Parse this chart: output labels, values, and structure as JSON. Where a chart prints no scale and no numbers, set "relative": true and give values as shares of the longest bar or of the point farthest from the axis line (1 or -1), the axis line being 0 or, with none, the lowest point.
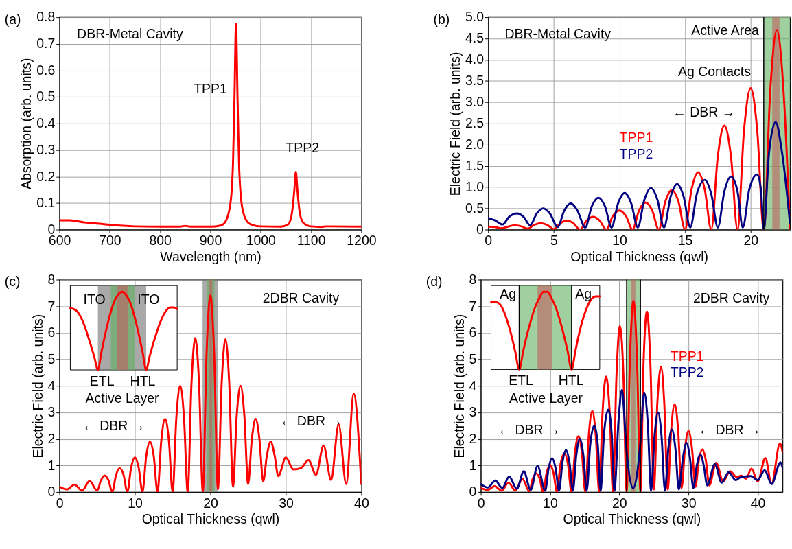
{
  "chart_data": [
    {
      "type": "line",
      "title": "(a)",
      "xlabel": "Wavelength (nm)",
      "ylabel": "Absorption (arb. units)",
      "xlim": [
        600,
        1200
      ],
      "ylim": [
        0,
        0.8
      ],
      "xticks": [
        600,
        700,
        800,
        900,
        1000,
        1100,
        1200
      ],
      "yticks": [
        0,
        0.1,
        0.2,
        0.3,
        0.4,
        0.5,
        0.6,
        0.7,
        0.8
      ],
      "grid": true,
      "x": [
        600,
        620,
        650,
        680,
        700,
        750,
        800,
        840,
        850,
        860,
        900,
        920,
        930,
        940,
        945,
        948,
        951,
        954,
        957,
        962,
        970,
        980,
        1000,
        1040,
        1055,
        1062,
        1067,
        1070,
        1073,
        1078,
        1085,
        1100,
        1120,
        1130,
        1200
      ],
      "series": [
        {
          "color": "#ff0000",
          "values": [
            0.035,
            0.035,
            0.027,
            0.022,
            0.018,
            0.012,
            0.011,
            0.011,
            0.014,
            0.011,
            0.011,
            0.015,
            0.03,
            0.1,
            0.25,
            0.5,
            0.775,
            0.5,
            0.25,
            0.1,
            0.04,
            0.02,
            0.012,
            0.011,
            0.02,
            0.06,
            0.15,
            0.218,
            0.15,
            0.06,
            0.025,
            0.012,
            0.01,
            0.012,
            0.011
          ]
        }
      ],
      "annotations": [
        "DBR-Metal Cavity",
        "TPP1",
        "TPP2"
      ]
    },
    {
      "type": "line",
      "title": "(b)",
      "xlabel": "Optical Thickness (qwl)",
      "ylabel": "Electric Field (arb. units)",
      "xlim": [
        0,
        23
      ],
      "ylim": [
        0,
        5
      ],
      "xticks": [
        0,
        5,
        10,
        15,
        20
      ],
      "yticks": [
        0,
        0.5,
        {
          "value": 1,
          "label": "1.0"
        },
        1.5,
        {
          "value": 2,
          "label": "2.0"
        },
        2.5,
        {
          "value": 3,
          "label": "3.0"
        },
        3.5,
        {
          "value": 4,
          "label": "4.0"
        },
        4.5,
        {
          "value": 5,
          "label": "5.0"
        }
      ],
      "grid": true,
      "series": [
        {
          "name": "TPP1",
          "color": "#ff0000",
          "x": [
            0,
            0.5,
            1,
            1.5,
            2,
            2.5,
            3,
            3.5,
            4,
            4.5,
            5,
            5.5,
            6,
            6.5,
            7,
            7.5,
            8,
            8.5,
            9,
            9.5,
            10,
            10.5,
            11,
            11.5,
            12,
            12.5,
            13,
            13.5,
            14,
            14.5,
            15,
            15.5,
            16,
            16.5,
            17,
            17.5,
            18,
            18.5,
            19,
            19.5,
            20,
            20.5,
            21,
            21.5,
            22,
            22.5,
            23
          ],
          "values": [
            0.07,
            0.06,
            0.03,
            0.07,
            0.1,
            0.08,
            0.02,
            0.11,
            0.15,
            0.11,
            0.01,
            0.15,
            0.21,
            0.15,
            0,
            0.21,
            0.3,
            0.21,
            0,
            0.32,
            0.45,
            0.32,
            0,
            0.45,
            0.64,
            0.45,
            0,
            0.66,
            0.93,
            0.66,
            0,
            0.95,
            1.35,
            0.95,
            0,
            1.73,
            2.45,
            1.73,
            0,
            2.35,
            3.33,
            2.35,
            0,
            3.3,
            4.7,
            3.3,
            0
          ]
        },
        {
          "name": "TPP2",
          "color": "#000080",
          "x": [
            0,
            0.5,
            1.1,
            1.6,
            2.2,
            2.7,
            3.2,
            3.7,
            4.2,
            4.7,
            5.3,
            5.8,
            6.3,
            6.8,
            7.4,
            7.9,
            8.4,
            8.9,
            9.4,
            9.9,
            10.4,
            10.9,
            11.4,
            11.9,
            12.4,
            12.9,
            13.4,
            13.9,
            14.4,
            14.9,
            15.4,
            15.9,
            16.5,
            17.0,
            17.5,
            18.0,
            18.5,
            19.0,
            19.4,
            19.9,
            20.5,
            20.8,
            21,
            21.4,
            21.9,
            22.4,
            23
          ],
          "values": [
            0.27,
            0.22,
            0.12,
            0.3,
            0.38,
            0.3,
            0.1,
            0.38,
            0.5,
            0.38,
            0.06,
            0.45,
            0.62,
            0.45,
            0.05,
            0.55,
            0.75,
            0.55,
            0.05,
            0.62,
            0.86,
            0.62,
            0.05,
            0.7,
            0.98,
            0.7,
            0.05,
            0.77,
            1.07,
            0.77,
            0.05,
            0.84,
            1.17,
            0.84,
            0.05,
            0.9,
            1.25,
            0.9,
            0.05,
            0.95,
            1.3,
            0.9,
            0,
            1.8,
            2.53,
            1.8,
            0.15
          ]
        }
      ],
      "bands": [
        {
          "axis": "x",
          "from": 21,
          "to": 23,
          "color": "#60b060"
        },
        {
          "axis": "x",
          "from": 21.65,
          "to": 22.2,
          "color": "#c06060"
        }
      ],
      "ref_lines": [
        {
          "axis": "x",
          "value": 21,
          "color": "#000000"
        }
      ],
      "annotations": [
        "DBR-Metal Cavity",
        "Active Area",
        "Ag Contacts",
        "← DBR →"
      ]
    },
    {
      "type": "line",
      "title": "(c)",
      "xlabel": "Optical Thickness (qwl)",
      "ylabel": "Electric Field (arb. units)",
      "xlim": [
        0,
        40
      ],
      "ylim": [
        0,
        8
      ],
      "xticks": [
        0,
        10,
        20,
        30,
        40
      ],
      "yticks": [
        0,
        1,
        2,
        3,
        4,
        5,
        6,
        7,
        8
      ],
      "grid": true,
      "x": [
        0,
        1,
        2,
        3,
        4,
        5,
        5.5,
        6,
        6.5,
        7,
        7.5,
        8,
        8.5,
        9,
        9.5,
        10,
        10.5,
        11,
        11.5,
        12,
        12.5,
        13,
        13.5,
        14,
        14.5,
        15,
        15.5,
        16,
        16.5,
        17,
        17.5,
        18,
        18.5,
        19,
        19.5,
        20,
        20.5,
        21,
        21.5,
        22,
        22.5,
        23,
        23.5,
        24,
        24.5,
        25,
        25.5,
        26,
        26.5,
        27,
        27.5,
        28,
        28.5,
        29,
        30,
        31,
        32,
        33,
        34,
        35,
        36,
        37,
        38,
        39,
        40
      ],
      "series": [
        {
          "color": "#ff0000",
          "values": [
            0.2,
            0.1,
            0.28,
            0.05,
            0.42,
            0.05,
            0.44,
            0.62,
            0.44,
            0,
            0.64,
            0.9,
            0.64,
            0,
            0.92,
            1.3,
            0.92,
            0,
            1.35,
            1.9,
            1.35,
            0,
            1.95,
            2.75,
            1.95,
            0,
            2.83,
            4.0,
            2.83,
            0,
            4.1,
            5.8,
            4.1,
            0,
            5.23,
            7.4,
            5.23,
            0.1,
            4.1,
            5.75,
            4.1,
            0.2,
            2.9,
            4.0,
            2.9,
            0.3,
            2.0,
            2.75,
            2.0,
            0.4,
            1.4,
            1.9,
            1.4,
            0.6,
            1.3,
            0.85,
            0.9,
            1.2,
            0.65,
            1.75,
            0.45,
            2.55,
            0.3,
            3.7,
            0.3
          ]
        }
      ],
      "bands": [
        {
          "axis": "x",
          "from": 18.97,
          "to": 21.02,
          "color": "#707070"
        },
        {
          "axis": "x",
          "from": 19.52,
          "to": 20.55,
          "color": "#60b060"
        },
        {
          "axis": "x",
          "from": 19.79,
          "to": 20.26,
          "color": "#c06060"
        }
      ],
      "annotations": [
        "2DBR Cavity",
        "← DBR →",
        "← DBR →"
      ]
    },
    {
      "type": "line",
      "relative": true,
      "tick_labels": false,
      "categories": [
        null,
        null,
        null,
        null,
        null,
        null,
        null,
        null,
        null,
        null,
        null,
        null,
        null,
        null,
        null,
        null,
        null,
        null,
        null,
        null,
        null,
        null,
        null,
        null,
        null,
        null,
        null,
        null,
        null,
        null,
        null,
        null
      ],
      "series": [
        {
          "color": "#ff0000",
          "values": [
            0.79,
            0.78,
            0.75,
            0.68,
            0.58,
            0.45,
            0.31,
            0.16,
            0,
            0.22,
            0.43,
            0.62,
            0.78,
            0.9,
            0.97,
            1,
            0.97,
            0.9,
            0.78,
            0.62,
            0.43,
            0.22,
            0,
            0.17,
            0.33,
            0.47,
            0.6,
            0.7,
            0.77,
            0.8,
            0.8,
            0.78
          ]
        }
      ],
      "annotations": [
        "ITO",
        "ITO",
        "ETL",
        "HTL",
        "Active Layer"
      ]
    },
    {
      "type": "line",
      "title": "(d)",
      "xlabel": "Optical Thickness (qwl)",
      "ylabel": "Electric Field (arb. units)",
      "xlim": [
        0,
        43.6
      ],
      "ylim": [
        0,
        8
      ],
      "xticks": [
        0,
        10,
        20,
        30,
        40
      ],
      "yticks": [
        0,
        1,
        2,
        3,
        4,
        5,
        6,
        7,
        8
      ],
      "grid": true,
      "series": [
        {
          "name": "TPP1",
          "color": "#ff0000",
          "x": [
            0,
            1,
            2,
            3,
            4,
            5,
            6,
            7,
            7.5,
            8,
            8.5,
            9,
            9.5,
            10,
            10.5,
            11,
            11.5,
            12.1,
            12.6,
            13.1,
            13.6,
            14.1,
            14.6,
            15.1,
            15.6,
            16.1,
            16.6,
            17.1,
            17.6,
            18.1,
            18.6,
            19.1,
            19.6,
            20.1,
            20.6,
            21.06,
            21.55,
            22.05,
            22.55,
            23.06,
            23.5,
            24.0,
            24.5,
            25.0,
            25.5,
            26.05,
            26.5,
            27.0,
            27.5,
            28.0,
            28.5,
            29.0,
            29.5,
            30.0,
            30.5,
            31.0,
            31.5,
            32.0,
            32.5,
            33.0,
            34.0,
            35.0,
            36.0,
            37.0,
            37.6,
            38.3,
            39.1,
            40.0,
            41.1,
            42.0,
            43.2,
            43.6
          ],
          "values": [
            0.15,
            0.08,
            0.22,
            0.05,
            0.35,
            0.05,
            0.5,
            0.03,
            0.5,
            0.7,
            0.5,
            0,
            0.72,
            1.02,
            0.72,
            0,
            1.03,
            1.45,
            1.03,
            0,
            1.48,
            2.1,
            1.48,
            0,
            2.15,
            3.05,
            2.15,
            0,
            3.07,
            4.35,
            3.07,
            0,
            4.4,
            6.25,
            4.4,
            0,
            5.1,
            7.2,
            5.1,
            0,
            4.8,
            6.8,
            4.8,
            0.1,
            3.35,
            4.72,
            3.35,
            0.1,
            2.35,
            3.3,
            2.35,
            0.15,
            1.65,
            2.3,
            1.65,
            0.2,
            1.2,
            1.6,
            1.2,
            0.25,
            1.1,
            0.4,
            0.78,
            0.55,
            0.62,
            0.5,
            0.88,
            0.4,
            1.28,
            0.3,
            1.82,
            1.5
          ]
        },
        {
          "name": "TPP2",
          "color": "#000080",
          "x": [
            0,
            1.0,
            2.1,
            3.1,
            4.1,
            5.2,
            6.2,
            7.2,
            8.2,
            9.3,
            9.8,
            10.3,
            10.8,
            11.3,
            11.8,
            12.3,
            12.8,
            13.3,
            13.8,
            14.3,
            14.8,
            15.3,
            15.8,
            16.4,
            16.9,
            17.3,
            17.8,
            18.4,
            18.9,
            19.3,
            19.9,
            20.4,
            21.0,
            22.0,
            23.0,
            23.6,
            24.1,
            24.6,
            25.1,
            25.6,
            26.1,
            26.6,
            27.1,
            27.6,
            28.1,
            28.6,
            29.2,
            29.7,
            30.2,
            30.7,
            31.2,
            31.7,
            32.2,
            32.7,
            33.8,
            34.8,
            35.8,
            36.8,
            37.5,
            39.0,
            40.0,
            41.0,
            42.0,
            43.3,
            43.6
          ],
          "values": [
            0.3,
            0.17,
            0.43,
            0.15,
            0.58,
            0.12,
            0.78,
            0.08,
            0.98,
            0.05,
            0.9,
            1.27,
            0.9,
            0.05,
            1.12,
            1.58,
            1.12,
            0.05,
            1.41,
            2.0,
            1.41,
            0.05,
            1.77,
            2.5,
            1.77,
            0.05,
            2.2,
            3.1,
            2.2,
            0.05,
            2.72,
            3.85,
            1.7,
            0.15,
            1.7,
            3.75,
            2.65,
            0.05,
            2.12,
            3.0,
            2.12,
            0.05,
            1.66,
            2.35,
            1.66,
            0.1,
            1.3,
            1.85,
            1.3,
            0.15,
            1.0,
            1.42,
            1.0,
            0.25,
            1.05,
            0.35,
            0.75,
            0.45,
            0.55,
            0.6,
            0.45,
            0.82,
            0.3,
            1.12,
            0.9
          ]
        }
      ],
      "bands": [
        {
          "axis": "x",
          "from": 21.06,
          "to": 23.06,
          "color": "#60b060"
        },
        {
          "axis": "x",
          "from": 21.76,
          "to": 22.33,
          "color": "#c06060"
        }
      ],
      "ref_lines": [
        {
          "axis": "x",
          "value": 21.06,
          "color": "#000000"
        },
        {
          "axis": "x",
          "value": 23.06,
          "color": "#000000"
        }
      ],
      "annotations": [
        "2DBR Cavity",
        "← DBR →",
        "← DBR →"
      ]
    },
    {
      "type": "line",
      "relative": true,
      "tick_labels": false,
      "categories": [
        null,
        null,
        null,
        null,
        null,
        null,
        null,
        null,
        null,
        null,
        null,
        null,
        null,
        null,
        null,
        null,
        null,
        null,
        null,
        null,
        null,
        null,
        null,
        null,
        null,
        null,
        null,
        null
      ],
      "series": [
        {
          "color": "#ff0000",
          "values": [
            0.865,
            0.87,
            0.85,
            0.77,
            0.63,
            0.45,
            0.23,
            0,
            0.24,
            0.46,
            0.65,
            0.81,
            0.92,
            1,
            1,
            0.92,
            0.81,
            0.65,
            0.46,
            0.24,
            0,
            0.25,
            0.49,
            0.68,
            0.82,
            0.91,
            0.94,
            0.94
          ]
        }
      ],
      "annotations": [
        "Ag",
        "Ag",
        "ETL",
        "HTL",
        "Active Layer"
      ]
    }
  ]
}
